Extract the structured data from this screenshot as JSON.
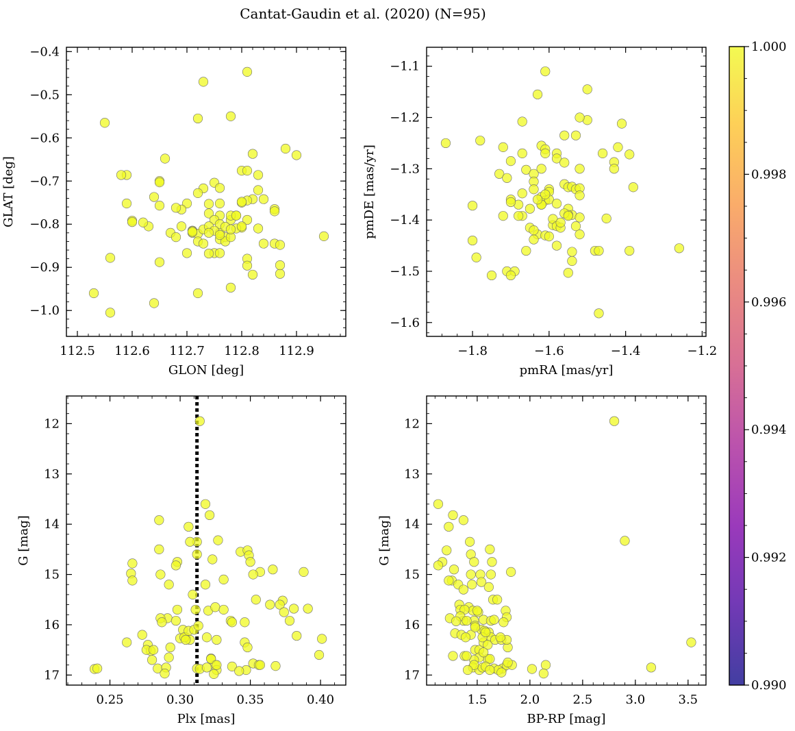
{
  "title": "Cantat-Gaudin et al. (2020) (N=95)",
  "colors": {
    "point": "#f0f921",
    "edge": "#6e6e6e"
  },
  "colorbar": {
    "ticks": [
      "1.000",
      "0.998",
      "0.996",
      "0.994",
      "0.992",
      "0.990"
    ],
    "range": [
      0.99,
      1.0
    ],
    "colormap": "plasma"
  },
  "chart_data": [
    {
      "type": "scatter",
      "id": "glon-glat",
      "xlabel": "GLON [deg]",
      "ylabel": "GLAT [deg]",
      "xlim": [
        112.48,
        112.99
      ],
      "ylim": [
        -1.06,
        -0.39
      ],
      "xticks": [
        112.5,
        112.6,
        112.7,
        112.8,
        112.9
      ],
      "xtick_labels": [
        "112.5",
        "112.6",
        "112.7",
        "112.8",
        "112.9"
      ],
      "yticks": [
        -0.4,
        -0.5,
        -0.6,
        -0.7,
        -0.8,
        -0.9,
        -1.0
      ],
      "ytick_labels": [
        "−0.4",
        "−0.5",
        "−0.6",
        "−0.7",
        "−0.8",
        "−0.9",
        "−1.0"
      ],
      "x": [
        112.81,
        112.73,
        112.55,
        112.72,
        112.78,
        112.59,
        112.88,
        112.9,
        112.82,
        112.66,
        112.65,
        112.65,
        112.64,
        112.6,
        112.75,
        112.8,
        112.81,
        112.82,
        112.73,
        112.74,
        112.76,
        112.76,
        112.83,
        112.84,
        112.83,
        112.81,
        112.7,
        112.69,
        112.68,
        112.72,
        112.63,
        112.67,
        112.65,
        112.6,
        112.74,
        112.76,
        112.78,
        112.79,
        112.8,
        112.75,
        112.8,
        112.71,
        112.72,
        112.73,
        112.74,
        112.76,
        112.77,
        112.78,
        112.79,
        112.86,
        112.86,
        112.76,
        112.76,
        112.77,
        112.75,
        112.81,
        112.71,
        112.74,
        112.77,
        112.78,
        112.79,
        112.72,
        112.73,
        112.69,
        112.71,
        112.8,
        112.8,
        112.76,
        112.78,
        112.84,
        112.86,
        112.87,
        112.95,
        112.65,
        112.56,
        112.81,
        112.75,
        112.76,
        112.72,
        112.82,
        112.87,
        112.78,
        112.74,
        112.87,
        112.83,
        112.71,
        112.64,
        112.53,
        112.56,
        112.59,
        112.62,
        112.58,
        112.7,
        112.81,
        112.68
      ],
      "y": [
        -0.447,
        -0.47,
        -0.565,
        -0.555,
        -0.55,
        -0.752,
        -0.625,
        -0.64,
        -0.637,
        -0.648,
        -0.7,
        -0.703,
        -0.737,
        -0.792,
        -0.704,
        -0.676,
        -0.676,
        -0.742,
        -0.717,
        -0.753,
        -0.716,
        -0.752,
        -0.721,
        -0.742,
        -0.81,
        -0.745,
        -0.752,
        -0.766,
        -0.762,
        -0.728,
        -0.805,
        -0.82,
        -0.757,
        -0.795,
        -0.775,
        -0.78,
        -0.79,
        -0.78,
        -0.75,
        -0.79,
        -0.808,
        -0.82,
        -0.822,
        -0.812,
        -0.805,
        -0.835,
        -0.83,
        -0.78,
        -0.81,
        -0.765,
        -0.77,
        -0.82,
        -0.8,
        -0.806,
        -0.815,
        -0.79,
        -0.815,
        -0.82,
        -0.84,
        -0.83,
        -0.78,
        -0.84,
        -0.845,
        -0.805,
        -0.816,
        -0.748,
        -0.805,
        -0.825,
        -0.812,
        -0.845,
        -0.845,
        -0.848,
        -0.828,
        -0.888,
        -0.878,
        -0.88,
        -0.867,
        -0.867,
        -0.96,
        -0.917,
        -0.915,
        -0.947,
        -0.868,
        -0.895,
        -0.686,
        -0.818,
        -0.983,
        -0.96,
        -1.005,
        -0.686,
        -0.796,
        -0.686,
        -0.867,
        -0.896,
        -0.83
      ]
    },
    {
      "type": "scatter",
      "id": "pmra-pmde",
      "xlabel": "pmRA [mas/yr]",
      "ylabel": "pmDE [mas/yr]",
      "xlim": [
        -1.92,
        -1.19
      ],
      "ylim": [
        -1.627,
        -1.063
      ],
      "xticks": [
        -1.8,
        -1.6,
        -1.4,
        -1.2
      ],
      "xtick_labels": [
        "−1.8",
        "−1.6",
        "−1.4",
        "−1.2"
      ],
      "yticks": [
        -1.1,
        -1.2,
        -1.3,
        -1.4,
        -1.5,
        -1.6
      ],
      "ytick_labels": [
        "−1.1",
        "−1.2",
        "−1.3",
        "−1.4",
        "−1.5",
        "−1.6"
      ],
      "x": [
        -1.61,
        -1.63,
        -1.5,
        -1.5,
        -1.67,
        -1.52,
        -1.87,
        -1.78,
        -1.72,
        -1.67,
        -1.41,
        -1.53,
        -1.56,
        -1.58,
        -1.62,
        -1.61,
        -1.61,
        -1.62,
        -1.52,
        -1.46,
        -1.42,
        -1.39,
        -1.43,
        -1.43,
        -1.38,
        -1.73,
        -1.71,
        -1.7,
        -1.66,
        -1.64,
        -1.64,
        -1.6,
        -1.6,
        -1.58,
        -1.56,
        -1.56,
        -1.55,
        -1.54,
        -1.53,
        -1.52,
        -1.64,
        -1.62,
        -1.61,
        -1.62,
        -1.67,
        -1.67,
        -1.68,
        -1.7,
        -1.8,
        -1.6,
        -1.58,
        -1.55,
        -1.54,
        -1.52,
        -1.45,
        -1.52,
        -1.55,
        -1.56,
        -1.63,
        -1.64,
        -1.59,
        -1.59,
        -1.52,
        -1.39,
        -1.8,
        -1.79,
        -1.65,
        -1.58,
        -1.57,
        -1.53,
        -1.48,
        -1.47,
        -1.26,
        -1.75,
        -1.71,
        -1.69,
        -1.7,
        -1.55,
        -1.47,
        -1.61,
        -1.62,
        -1.66,
        -1.7,
        -1.64,
        -1.6,
        -1.54,
        -1.57,
        -1.55,
        -1.61,
        -1.65,
        -1.54,
        -1.63,
        -1.68,
        -1.72,
        -1.58
      ],
      "y": [
        -1.11,
        -1.155,
        -1.145,
        -1.205,
        -1.208,
        -1.2,
        -1.25,
        -1.245,
        -1.258,
        -1.27,
        -1.212,
        -1.235,
        -1.235,
        -1.27,
        -1.255,
        -1.262,
        -1.27,
        -1.3,
        -1.3,
        -1.27,
        -1.258,
        -1.272,
        -1.287,
        -1.3,
        -1.336,
        -1.31,
        -1.318,
        -1.285,
        -1.302,
        -1.31,
        -1.325,
        -1.34,
        -1.345,
        -1.28,
        -1.288,
        -1.33,
        -1.336,
        -1.335,
        -1.34,
        -1.338,
        -1.34,
        -1.355,
        -1.362,
        -1.37,
        -1.348,
        -1.392,
        -1.37,
        -1.36,
        -1.372,
        -1.36,
        -1.368,
        -1.378,
        -1.39,
        -1.395,
        -1.397,
        -1.352,
        -1.39,
        -1.387,
        -1.428,
        -1.438,
        -1.41,
        -1.398,
        -1.428,
        -1.46,
        -1.44,
        -1.473,
        -1.415,
        -1.412,
        -1.415,
        -1.412,
        -1.46,
        -1.582,
        -1.455,
        -1.508,
        -1.5,
        -1.5,
        -1.508,
        -1.503,
        -1.46,
        -1.43,
        -1.37,
        -1.46,
        -1.365,
        -1.42,
        -1.432,
        -1.462,
        -1.405,
        -1.392,
        -1.35,
        -1.378,
        -1.48,
        -1.36,
        -1.392,
        -1.392,
        -1.45
      ]
    },
    {
      "type": "scatter",
      "id": "plx-g",
      "xlabel": "Plx [mas]",
      "ylabel": "G [mag]",
      "xlim": [
        0.219,
        0.418
      ],
      "ylim": [
        17.2,
        11.45
      ],
      "inverted_y": true,
      "vline": 0.312,
      "xticks": [
        0.25,
        0.3,
        0.35,
        0.4
      ],
      "xtick_labels": [
        "0.25",
        "0.30",
        "0.35",
        "0.40"
      ],
      "yticks": [
        12,
        13,
        14,
        15,
        16,
        17
      ],
      "ytick_labels": [
        "12",
        "13",
        "14",
        "15",
        "16",
        "17"
      ],
      "x": [
        0.314,
        0.318,
        0.321,
        0.285,
        0.306,
        0.312,
        0.327,
        0.285,
        0.307,
        0.298,
        0.297,
        0.286,
        0.312,
        0.323,
        0.343,
        0.348,
        0.349,
        0.35,
        0.366,
        0.357,
        0.388,
        0.266,
        0.265,
        0.266,
        0.298,
        0.318,
        0.331,
        0.352,
        0.354,
        0.364,
        0.373,
        0.371,
        0.292,
        0.309,
        0.311,
        0.32,
        0.325,
        0.331,
        0.336,
        0.337,
        0.302,
        0.304,
        0.307,
        0.319,
        0.326,
        0.346,
        0.348,
        0.383,
        0.391,
        0.381,
        0.374,
        0.378,
        0.346,
        0.262,
        0.273,
        0.277,
        0.279,
        0.276,
        0.281,
        0.28,
        0.284,
        0.29,
        0.292,
        0.293,
        0.3,
        0.303,
        0.304,
        0.306,
        0.31,
        0.312,
        0.322,
        0.325,
        0.337,
        0.352,
        0.356,
        0.368,
        0.357,
        0.399,
        0.401,
        0.291,
        0.297,
        0.286,
        0.287,
        0.313,
        0.314,
        0.322,
        0.326,
        0.319,
        0.326,
        0.347,
        0.342,
        0.324,
        0.289,
        0.239,
        0.241
      ],
      "y": [
        11.95,
        13.6,
        13.82,
        13.92,
        14.05,
        14.35,
        14.32,
        14.5,
        14.35,
        14.75,
        14.82,
        15.0,
        14.6,
        14.7,
        14.55,
        14.52,
        14.62,
        14.75,
        14.9,
        14.95,
        14.95,
        14.78,
        14.98,
        15.12,
        15.7,
        15.2,
        15.1,
        15.0,
        15.5,
        15.6,
        15.52,
        15.6,
        15.2,
        15.4,
        15.7,
        15.72,
        15.65,
        15.7,
        15.92,
        15.95,
        16.1,
        16.25,
        16.3,
        16.25,
        16.3,
        16.35,
        16.45,
        16.22,
        15.68,
        15.68,
        15.75,
        15.92,
        15.95,
        16.35,
        16.2,
        16.4,
        16.52,
        16.5,
        16.5,
        16.7,
        16.87,
        16.85,
        16.65,
        16.45,
        16.27,
        16.25,
        16.3,
        16.12,
        16.1,
        16.87,
        16.67,
        16.8,
        16.83,
        16.77,
        16.8,
        16.82,
        16.8,
        16.6,
        16.28,
        15.87,
        15.92,
        15.87,
        15.95,
        16.02,
        16.88,
        16.68,
        16.9,
        16.85,
        16.8,
        16.9,
        16.92,
        16.98,
        16.97,
        16.88,
        16.87
      ]
    },
    {
      "type": "scatter",
      "id": "bprp-g",
      "xlabel": "BP-RP [mag]",
      "ylabel": "G [mag]",
      "xlim": [
        1.02,
        3.67
      ],
      "ylim": [
        17.2,
        11.45
      ],
      "inverted_y": true,
      "xticks": [
        1.5,
        2.0,
        2.5,
        3.0,
        3.5
      ],
      "xtick_labels": [
        "1.5",
        "2.0",
        "2.5",
        "3.0",
        "3.5"
      ],
      "yticks": [
        12,
        13,
        14,
        15,
        16,
        17
      ],
      "ytick_labels": [
        "12",
        "13",
        "14",
        "15",
        "16",
        "17"
      ],
      "x": [
        2.8,
        2.9,
        1.13,
        1.27,
        1.37,
        1.23,
        1.43,
        1.62,
        1.44,
        1.64,
        1.17,
        1.21,
        1.13,
        1.28,
        1.44,
        1.47,
        1.53,
        1.63,
        1.82,
        1.26,
        1.32,
        1.23,
        1.37,
        1.45,
        1.54,
        1.61,
        1.65,
        1.69,
        1.33,
        1.34,
        1.42,
        1.46,
        1.51,
        1.38,
        1.37,
        1.47,
        1.56,
        1.63,
        1.34,
        1.5,
        1.24,
        1.3,
        1.4,
        1.48,
        1.54,
        1.57,
        1.61,
        1.63,
        1.77,
        1.78,
        1.75,
        1.29,
        1.35,
        1.44,
        1.48,
        1.52,
        1.56,
        1.6,
        1.67,
        1.73,
        1.79,
        1.78,
        1.6,
        1.52,
        1.47,
        1.38,
        1.62,
        1.74,
        1.78,
        1.46,
        1.52,
        1.55,
        1.58,
        1.66,
        1.7,
        1.73,
        1.83,
        1.79,
        2.02,
        2.15,
        2.13,
        3.15,
        3.53,
        1.27,
        1.4,
        1.56,
        1.47,
        1.62,
        1.39,
        1.55,
        1.58,
        1.66,
        1.72,
        1.48,
        1.41
      ],
      "y": [
        11.95,
        14.33,
        13.6,
        13.82,
        13.92,
        14.05,
        14.35,
        14.5,
        14.6,
        14.75,
        14.75,
        14.52,
        14.82,
        14.9,
        15.0,
        14.75,
        15.0,
        15.0,
        14.95,
        15.12,
        15.2,
        15.12,
        15.3,
        15.2,
        15.15,
        15.25,
        15.5,
        15.5,
        15.6,
        15.7,
        15.65,
        15.72,
        15.75,
        15.7,
        15.92,
        15.92,
        15.9,
        15.92,
        15.83,
        15.72,
        15.87,
        15.93,
        15.92,
        16.02,
        16.1,
        16.12,
        16.15,
        16.25,
        15.72,
        15.85,
        15.95,
        16.17,
        16.2,
        16.2,
        16.5,
        16.5,
        16.35,
        16.4,
        16.3,
        16.3,
        16.45,
        16.3,
        16.68,
        16.65,
        16.7,
        16.62,
        16.68,
        16.87,
        16.8,
        16.85,
        16.9,
        16.85,
        16.83,
        16.87,
        16.9,
        16.95,
        16.8,
        16.75,
        16.88,
        16.8,
        16.97,
        16.85,
        16.35,
        16.62,
        16.62,
        16.55,
        16.8,
        16.9,
        16.25,
        16.25,
        16.15,
        15.9,
        16.25,
        16.05,
        16.9
      ]
    }
  ]
}
